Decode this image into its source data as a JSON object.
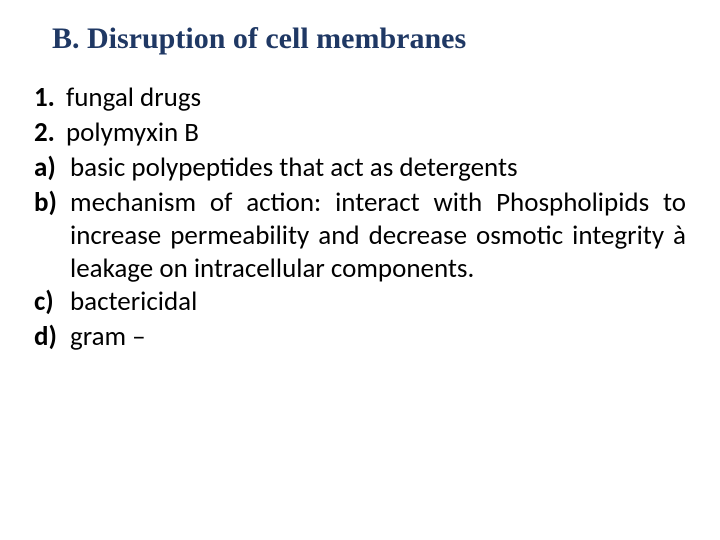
{
  "heading": {
    "text": "B. Disruption of cell membranes",
    "color": "#1f3864",
    "font_family": "Times New Roman",
    "font_weight": "bold",
    "font_size_pt": 22
  },
  "body": {
    "color": "#000000",
    "font_family": "Calibri",
    "font_size_pt": 20,
    "items": [
      {
        "marker": "1.",
        "text": " fungal drugs",
        "justify": false
      },
      {
        "marker": "2.",
        "text": "polymyxin B",
        "justify": false
      },
      {
        "marker": "a)",
        "text": "basic polypeptides that act as detergents",
        "justify": false
      },
      {
        "marker": "b)",
        "text": "mechanism of action: interact with Phospholipids to increase permeability and decrease  osmotic integrity à leakage on intracellular components.",
        "justify": true
      },
      {
        "marker": "c)",
        "text": "bactericidal",
        "justify": false
      },
      {
        "marker": "d)",
        "text": "gram –",
        "justify": false
      }
    ]
  }
}
